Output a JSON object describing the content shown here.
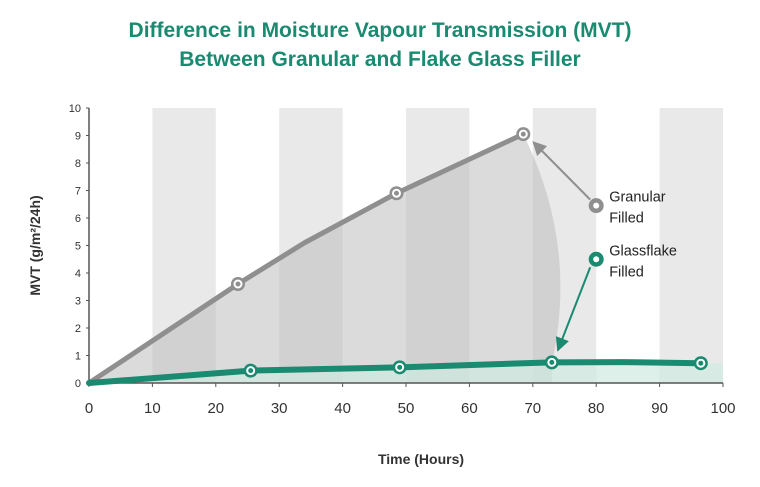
{
  "chart_data": {
    "type": "line",
    "title": [
      "Difference in Moisture Vapour Transmission (MVT)",
      "Between Granular and Flake Glass Filler"
    ],
    "xlabel": "Time (Hours)",
    "ylabel": "MVT (g/m²/24h)",
    "xlim": [
      0,
      100
    ],
    "ylim": [
      0,
      10
    ],
    "x_ticks": [
      0,
      10,
      20,
      30,
      40,
      50,
      60,
      70,
      80,
      90,
      100
    ],
    "y_ticks": [
      0,
      1,
      2,
      3,
      4,
      5,
      6,
      7,
      8,
      9,
      10
    ],
    "grid": "alternating vertical bands",
    "series": [
      {
        "name": "Granular Filled",
        "color": "#8f8f8f",
        "line": [
          [
            0,
            0
          ],
          [
            23.5,
            3.6
          ],
          [
            34,
            5.1
          ],
          [
            48.5,
            6.9
          ],
          [
            68.5,
            9.05
          ]
        ],
        "markers": [
          [
            23.5,
            3.6
          ],
          [
            48.5,
            6.9
          ],
          [
            68.5,
            9.05
          ]
        ]
      },
      {
        "name": "Glassflake Filled",
        "color": "#1a8a70",
        "line": [
          [
            0,
            0
          ],
          [
            25.5,
            0.45
          ],
          [
            49,
            0.57
          ],
          [
            73,
            0.75
          ],
          [
            84,
            0.76
          ],
          [
            96.5,
            0.72
          ]
        ],
        "markers": [
          [
            25.5,
            0.45
          ],
          [
            49,
            0.57
          ],
          [
            73,
            0.75
          ],
          [
            96.5,
            0.72
          ]
        ]
      }
    ],
    "annotations": [
      {
        "label_lines": [
          "Granular",
          "Filled"
        ],
        "series": "Granular Filled",
        "marker_at": [
          80,
          6.45
        ],
        "points_to": [
          68.5,
          9.05
        ]
      },
      {
        "label_lines": [
          "Glassflake",
          "Filled"
        ],
        "series": "Glassflake Filled",
        "marker_at": [
          80,
          4.5
        ],
        "points_to": [
          73,
          0.75
        ]
      }
    ]
  }
}
